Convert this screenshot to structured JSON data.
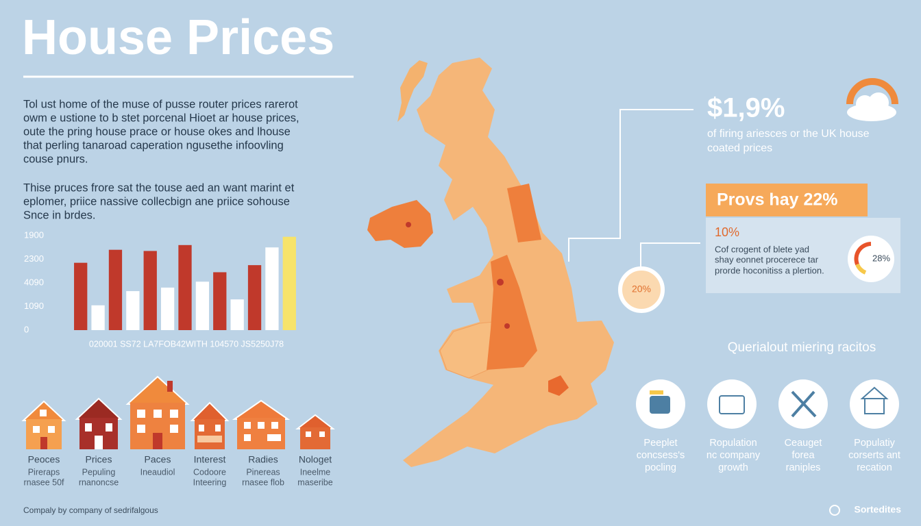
{
  "header": {
    "title": "House Prices"
  },
  "intro": {
    "paragraphs": [
      [
        "Tol ust home of the muse of pusse router prices rarerot",
        "owm e ustione to b stet porcenal Hioet ar house prices,",
        "oute the pring house prace or house okes and lhouse",
        "that perling tanaroad caperation ngusethe infoovling",
        "couse pnurs."
      ],
      [
        "Thise pruces frore sat the touse aed an want marint et",
        "eplomer, priice nassive collecbign ane priice sohouse",
        "Snce in brdes."
      ]
    ]
  },
  "chart_data": {
    "type": "bar",
    "categories": [
      null,
      null,
      null,
      null,
      null,
      null,
      null,
      null,
      null,
      null,
      null,
      null,
      null
    ],
    "values": [
      2.85,
      1.05,
      3.4,
      1.65,
      3.35,
      1.8,
      3.6,
      2.05,
      2.45,
      1.3,
      2.75,
      3.5,
      3.95
    ],
    "colors": [
      "#c0392b",
      "#ffffff",
      "#c0392b",
      "#ffffff",
      "#c0392b",
      "#ffffff",
      "#c0392b",
      "#ffffff",
      "#c0392b",
      "#ffffff",
      "#c0392b",
      "#ffffff",
      "#f7e36a"
    ],
    "x_label": "020001 SS72 LA7FOB42WITH 104570 JS5250J78",
    "ylim": [
      0,
      4
    ],
    "yticks": [
      {
        "value": 4,
        "label": "1900"
      },
      {
        "value": 3,
        "label": "2300"
      },
      {
        "value": 2,
        "label": "4090"
      },
      {
        "value": 1,
        "label": "1090"
      },
      0
    ]
  },
  "houses": [
    {
      "label": "Peoces",
      "lines": [
        "Pireraps",
        "rnasee 50f"
      ]
    },
    {
      "label": "Prices",
      "lines": [
        "Pepuling",
        "rnanoncse"
      ]
    },
    {
      "label": "Paces",
      "lines": [
        "Ineaudiol"
      ]
    },
    {
      "label": "Interest",
      "lines": [
        "Codoore",
        "Inteering"
      ]
    },
    {
      "label": "Radies",
      "lines": [
        "Pinereas",
        "rnasee flob"
      ]
    },
    {
      "label": "Nologet",
      "lines": [
        "Ineelme",
        "maseribe"
      ]
    }
  ],
  "stats": {
    "headline": "$1,9%",
    "headline_lines": [
      "of firing ariesces or the UK house",
      "coated prices"
    ],
    "banner": "Provs hay 22%",
    "panel_value": "10%",
    "panel_lines": [
      "Cof crogent of blete yad",
      "shay eonnet procerece tar",
      "prorde hoconitiss a plertion."
    ],
    "donut": "28%",
    "bubble": "20%"
  },
  "icons": {
    "heading": "Querialout miering racitos",
    "items": [
      {
        "lines": [
          "Peeplet",
          "concsess's",
          "pocling"
        ]
      },
      {
        "lines": [
          "Ropulation",
          "nc company",
          "growth"
        ]
      },
      {
        "lines": [
          "Ceauget",
          "forea",
          "raniples"
        ]
      },
      {
        "lines": [
          "Populatiy",
          "corserts ant",
          "recation"
        ]
      }
    ]
  },
  "footer": {
    "credit": "Compaly by company of sedrifalgous",
    "brand": "Sortedites"
  }
}
